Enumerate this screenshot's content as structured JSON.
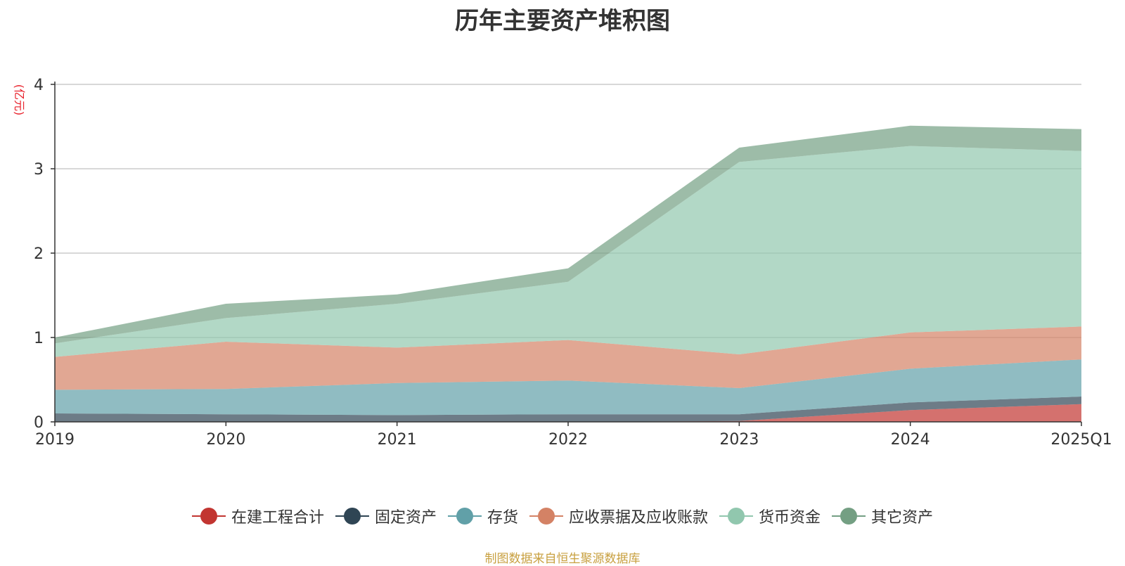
{
  "chart_data": {
    "type": "area",
    "title": "历年主要资产堆积图",
    "ylabel": "(亿元)",
    "xlabel": "",
    "categories": [
      "2019",
      "2020",
      "2021",
      "2022",
      "2023",
      "2024",
      "2025Q1"
    ],
    "ylim": [
      0,
      4
    ],
    "yticks": [
      0,
      1,
      2,
      3,
      4
    ],
    "grid": true,
    "stacked": true,
    "legend_position": "bottom",
    "series": [
      {
        "name": "在建工程合计",
        "color": "#c23531",
        "values": [
          0,
          0,
          0,
          0,
          0.01,
          0.14,
          0.21
        ]
      },
      {
        "name": "固定资产",
        "color": "#2f4554",
        "values": [
          0.1,
          0.09,
          0.08,
          0.09,
          0.08,
          0.09,
          0.09
        ]
      },
      {
        "name": "存货",
        "color": "#61a0a8",
        "values": [
          0.28,
          0.3,
          0.38,
          0.4,
          0.31,
          0.4,
          0.44
        ]
      },
      {
        "name": "应收票据及应收账款",
        "color": "#d48265",
        "values": [
          0.39,
          0.56,
          0.42,
          0.48,
          0.4,
          0.43,
          0.39
        ]
      },
      {
        "name": "货币资金",
        "color": "#91c7ae",
        "values": [
          0.16,
          0.28,
          0.52,
          0.69,
          2.28,
          2.21,
          2.08
        ]
      },
      {
        "name": "其它资产",
        "color": "#749f83",
        "values": [
          0.07,
          0.17,
          0.11,
          0.16,
          0.17,
          0.24,
          0.26
        ]
      }
    ]
  },
  "source_text": "制图数据来自恒生聚源数据库"
}
